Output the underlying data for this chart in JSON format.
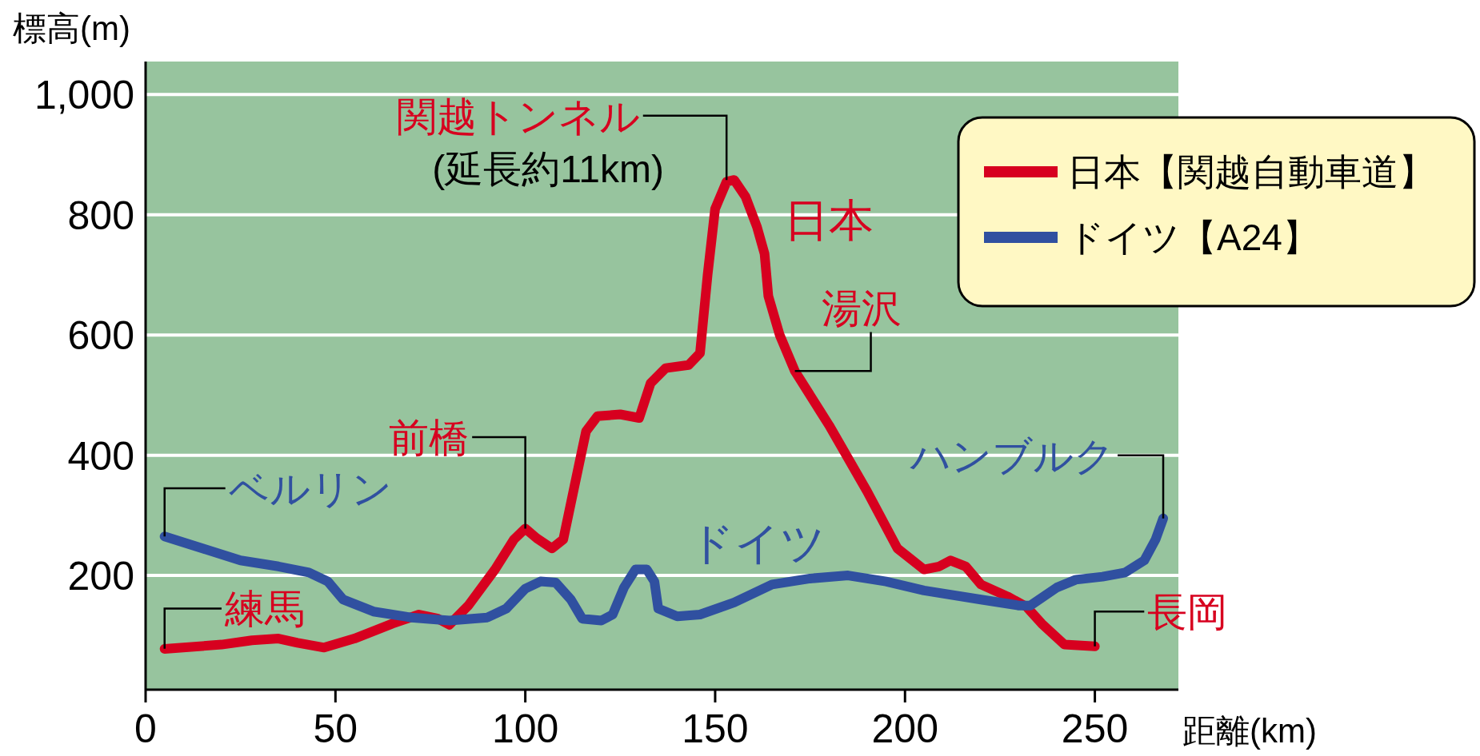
{
  "chart_data": {
    "type": "line",
    "xlabel": "距離(km)",
    "ylabel": "標高(m)",
    "xlim": [
      0,
      272
    ],
    "ylim": [
      10,
      1055
    ],
    "xticks": [
      0,
      50,
      100,
      150,
      200,
      250
    ],
    "yticks": [
      200,
      400,
      600,
      800,
      {
        "value": 1000,
        "label": "1,000"
      }
    ],
    "grid": "y",
    "legend": "top right",
    "line_style": "solid",
    "marker": "none",
    "series": [
      {
        "name": "日本【関越自動車道】",
        "color": "#d7001f",
        "x": [
          5,
          20,
          28,
          35,
          40,
          47,
          55,
          65,
          72,
          77,
          80,
          85,
          92,
          97,
          100,
          103,
          107,
          110,
          113,
          116,
          119,
          125,
          130,
          133,
          137,
          143,
          146,
          148,
          150,
          153,
          155,
          158,
          161,
          163,
          164,
          167,
          171,
          180,
          190,
          198,
          205,
          209,
          212,
          216,
          220,
          227,
          232,
          236,
          242,
          250
        ],
        "values": [
          78,
          85,
          92,
          95,
          88,
          80,
          95,
          120,
          135,
          128,
          118,
          150,
          210,
          260,
          278,
          262,
          245,
          260,
          350,
          440,
          465,
          468,
          462,
          520,
          545,
          550,
          570,
          700,
          810,
          855,
          858,
          830,
          780,
          735,
          665,
          600,
          540,
          450,
          340,
          245,
          210,
          215,
          225,
          215,
          185,
          165,
          148,
          120,
          85,
          82
        ]
      },
      {
        "name": "ドイツ【A24】",
        "color": "#3050a0",
        "x": [
          5,
          15,
          25,
          35,
          43,
          48,
          52,
          60,
          70,
          80,
          90,
          95,
          100,
          104,
          108,
          112,
          115,
          120,
          123,
          126,
          129,
          132,
          134,
          135,
          140,
          146,
          155,
          165,
          175,
          185,
          195,
          205,
          220,
          230,
          233,
          240,
          245,
          252,
          258,
          263,
          266,
          268
        ],
        "values": [
          265,
          245,
          225,
          215,
          205,
          190,
          160,
          140,
          130,
          125,
          130,
          145,
          178,
          190,
          188,
          160,
          128,
          125,
          135,
          180,
          210,
          210,
          190,
          145,
          132,
          135,
          155,
          185,
          195,
          200,
          190,
          175,
          160,
          150,
          150,
          180,
          193,
          198,
          205,
          225,
          260,
          295
        ]
      }
    ],
    "annotations": [
      {
        "text": "練馬",
        "x": 5,
        "y": 78
      },
      {
        "text": "ベルリン",
        "x": 5,
        "y": 265
      },
      {
        "text": "前橋",
        "x": 100,
        "y": 278
      },
      {
        "text": "関越トンネル",
        "x": 153,
        "y": 858
      },
      "(延長約11km)",
      "日本",
      {
        "text": "湯沢",
        "x": 171,
        "y": 540
      },
      "ドイツ",
      {
        "text": "長岡",
        "x": 250,
        "y": 82
      },
      {
        "text": "ハンブルク",
        "x": 268,
        "y": 295
      }
    ]
  }
}
